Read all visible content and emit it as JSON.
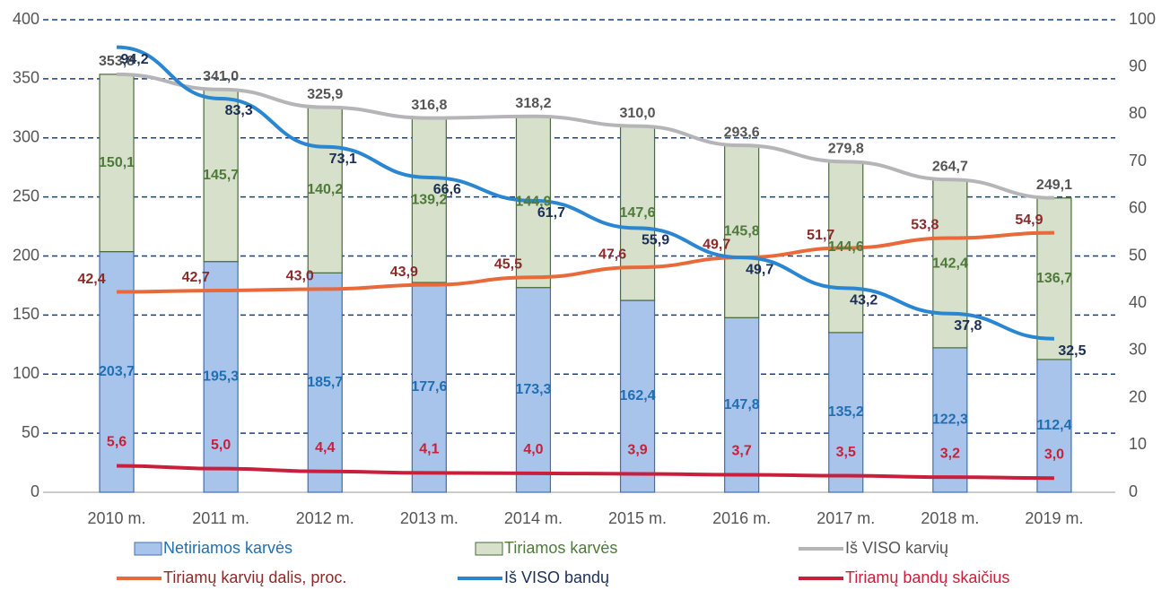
{
  "chart_data": {
    "type": "bar",
    "categories": [
      "2010 m.",
      "2011 m.",
      "2012 m.",
      "2013 m.",
      "2014 m.",
      "2015 m.",
      "2016 m.",
      "2017 m.",
      "2018 m.",
      "2019 m."
    ],
    "ylim": [
      0,
      400
    ],
    "yticks": [
      0,
      50,
      100,
      150,
      200,
      250,
      300,
      350,
      400
    ],
    "y2lim": [
      0,
      100
    ],
    "y2ticks": [
      0,
      10,
      20,
      30,
      40,
      50,
      60,
      70,
      80,
      90,
      100
    ],
    "grid": true,
    "stacked": true,
    "legend": "bottom",
    "series": [
      {
        "name": "Netiriamos karvės",
        "type": "bar",
        "color": "#a9c4eb",
        "label_color": "#1f6fb5",
        "values": [
          203.7,
          195.3,
          185.7,
          177.6,
          173.3,
          162.4,
          147.8,
          135.2,
          122.3,
          112.4
        ],
        "value_labels": [
          "203,7",
          "195,3",
          "185,7",
          "177,6",
          "173,3",
          "162,4",
          "147,8",
          "135,2",
          "122,3",
          "112,4"
        ]
      },
      {
        "name": "Tiriamos karvės",
        "type": "bar",
        "color": "#d6e0cb",
        "label_color": "#4e7a3a",
        "values": [
          150.1,
          145.7,
          140.2,
          139.2,
          144.9,
          147.6,
          145.8,
          144.6,
          142.4,
          136.7
        ],
        "value_labels": [
          "150,1",
          "145,7",
          "140,2",
          "139,2",
          "144,9",
          "147,6",
          "145,8",
          "144,6",
          "142,4",
          "136,7"
        ]
      },
      {
        "name": "Iš VISO karvių",
        "type": "line",
        "color": "#b5b5b8",
        "label_color": "#555555",
        "values": [
          353.8,
          341.0,
          325.9,
          316.8,
          318.2,
          310.0,
          293.6,
          279.8,
          264.7,
          249.1
        ],
        "value_labels": [
          "353,8",
          "341,0",
          "325,9",
          "316,8",
          "318,2",
          "310,0",
          "293,6",
          "279,8",
          "264,7",
          "249,1"
        ]
      },
      {
        "name": "Tiriamų karvių dalis, proc.",
        "type": "line",
        "axis": "y2",
        "color": "#e8693a",
        "label_color": "#8b2a2a",
        "values": [
          42.4,
          42.7,
          43.0,
          43.9,
          45.5,
          47.6,
          49.7,
          51.7,
          53.8,
          54.9
        ],
        "value_labels": [
          "42,4",
          "42,7",
          "43,0",
          "43,9",
          "45,5",
          "47,6",
          "49,7",
          "51,7",
          "53,8",
          "54,9"
        ]
      },
      {
        "name": "Iš VISO bandų",
        "type": "line",
        "axis": "y2",
        "color": "#2a86d1",
        "label_color": "#1b2f57",
        "values": [
          94.2,
          83.3,
          73.1,
          66.6,
          61.7,
          55.9,
          49.7,
          43.2,
          37.8,
          32.5
        ],
        "value_labels": [
          "94,2",
          "83,3",
          "73,1",
          "66,6",
          "61,7",
          "55,9",
          "49,7",
          "43,2",
          "37,8",
          "32,5"
        ]
      },
      {
        "name": "Tiriamų bandų skaičius",
        "type": "line",
        "axis": "y2",
        "color": "#c8203c",
        "label_color": "#c8203c",
        "values": [
          5.6,
          5.0,
          4.4,
          4.1,
          4.0,
          3.9,
          3.7,
          3.5,
          3.2,
          3.0
        ],
        "value_labels": [
          "5,6",
          "5,0",
          "4,4",
          "4,1",
          "4,0",
          "3,9",
          "3,7",
          "3,5",
          "3,2",
          "3,0"
        ]
      }
    ]
  }
}
